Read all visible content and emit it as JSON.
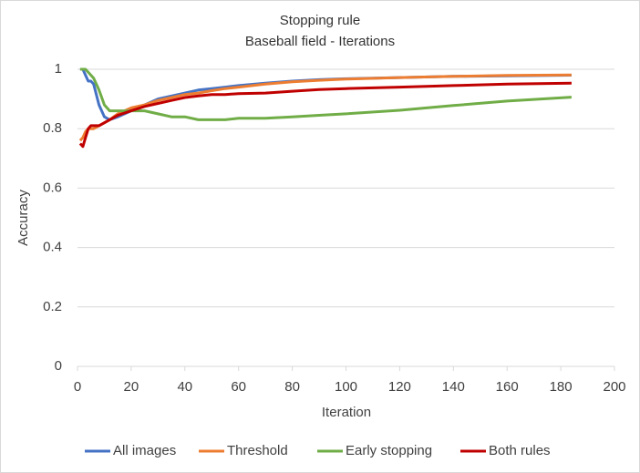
{
  "chart_data": {
    "type": "line",
    "title": "Stopping rule",
    "subtitle": "Baseball field - Iterations",
    "x_label": "Iteration",
    "y_label": "Accuracy",
    "x": [
      1,
      2,
      3,
      4,
      5,
      6,
      8,
      10,
      12,
      15,
      20,
      25,
      30,
      35,
      40,
      45,
      50,
      55,
      60,
      70,
      80,
      90,
      100,
      120,
      140,
      160,
      184
    ],
    "series": [
      {
        "name": "All images",
        "color": "#4472c4",
        "values": [
          1.0,
          1.0,
          0.98,
          0.96,
          0.96,
          0.95,
          0.88,
          0.84,
          0.83,
          0.84,
          0.86,
          0.88,
          0.9,
          0.91,
          0.92,
          0.93,
          0.935,
          0.94,
          0.945,
          0.953,
          0.96,
          0.965,
          0.968,
          0.972,
          0.976,
          0.978,
          0.98
        ]
      },
      {
        "name": "Threshold",
        "color": "#ed7d31",
        "values": [
          0.76,
          0.77,
          0.79,
          0.8,
          0.8,
          0.8,
          0.81,
          0.82,
          0.83,
          0.85,
          0.87,
          0.88,
          0.895,
          0.905,
          0.915,
          0.92,
          0.928,
          0.935,
          0.94,
          0.95,
          0.958,
          0.963,
          0.967,
          0.972,
          0.976,
          0.979,
          0.981
        ]
      },
      {
        "name": "Early stopping",
        "color": "#70ad47",
        "values": [
          1.0,
          1.0,
          1.0,
          0.99,
          0.98,
          0.97,
          0.93,
          0.88,
          0.86,
          0.86,
          0.86,
          0.86,
          0.85,
          0.84,
          0.84,
          0.83,
          0.83,
          0.83,
          0.835,
          0.835,
          0.84,
          0.845,
          0.85,
          0.862,
          0.878,
          0.893,
          0.906
        ]
      },
      {
        "name": "Both rules",
        "color": "#c00000",
        "values": [
          0.75,
          0.74,
          0.77,
          0.8,
          0.81,
          0.81,
          0.81,
          0.82,
          0.83,
          0.845,
          0.86,
          0.875,
          0.885,
          0.895,
          0.905,
          0.91,
          0.915,
          0.915,
          0.918,
          0.92,
          0.926,
          0.932,
          0.935,
          0.94,
          0.945,
          0.95,
          0.953
        ]
      }
    ],
    "xlim": [
      0,
      200
    ],
    "xticks": [
      0,
      20,
      40,
      60,
      80,
      100,
      120,
      140,
      160,
      180,
      200
    ],
    "ylim": [
      0,
      1
    ],
    "yticks": [
      0,
      0.2,
      0.4,
      0.6,
      0.8,
      1
    ],
    "grid": true,
    "legend": "bottom"
  }
}
